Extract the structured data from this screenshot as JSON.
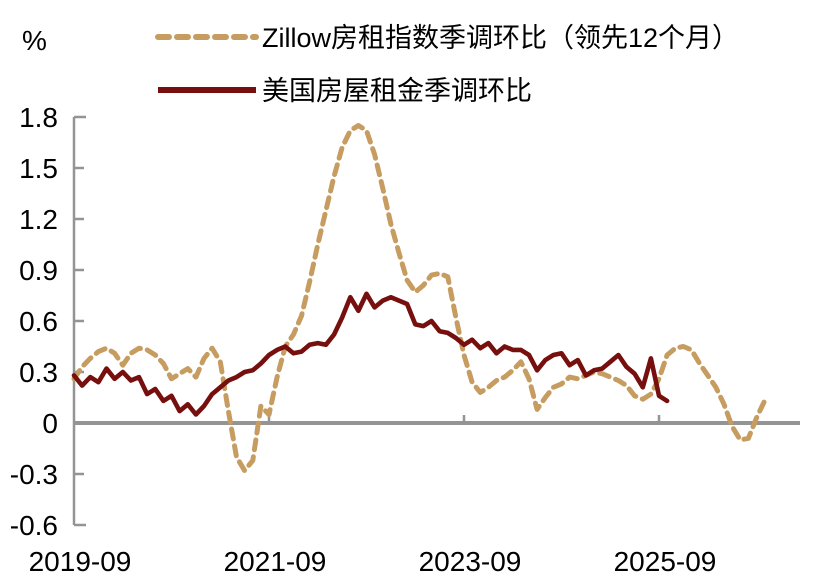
{
  "figure": {
    "y_unit_label": "%",
    "axis_color": "#949494",
    "text_color": "#000000",
    "legend": [
      {
        "label": "Zillow房租指数季调环比（领先12个月）",
        "line_style": "dashed",
        "color": "#C69C60"
      },
      {
        "label": "美国房屋租金季调环比",
        "line_style": "solid",
        "color": "#760F0D"
      }
    ]
  },
  "chart_data": {
    "type": "line",
    "title": "",
    "xlabel": "",
    "ylabel": "%",
    "grid": false,
    "legend_position": "top-left",
    "ylim": [
      -0.6,
      1.8
    ],
    "y_ticks": [
      1.8,
      1.5,
      1.2,
      0.9,
      0.6,
      0.3,
      0,
      -0.3,
      -0.6
    ],
    "y_tick_labels": [
      "1.8",
      "1.5",
      "1.2",
      "0.9",
      "0.6",
      "0.3",
      "0",
      "-0.3",
      "-0.6"
    ],
    "x_frequency": "monthly",
    "x_start": "2019-09",
    "x_tick_months": [
      0,
      24,
      48,
      72
    ],
    "x_tick_labels": [
      "2019-09",
      "2021-09",
      "2023-09",
      "2025-09"
    ],
    "series": [
      {
        "name": "Zillow房租指数季调环比（领先12个月）",
        "color": "#C69C60",
        "dashed": true,
        "start_month": "2019-09",
        "end_month": "2026-10",
        "values": [
          0.26,
          0.33,
          0.38,
          0.42,
          0.44,
          0.41,
          0.34,
          0.41,
          0.44,
          0.43,
          0.4,
          0.35,
          0.26,
          0.29,
          0.32,
          0.27,
          0.38,
          0.44,
          0.36,
          0.07,
          -0.2,
          -0.28,
          -0.22,
          0.1,
          0.05,
          0.27,
          0.45,
          0.52,
          0.63,
          0.83,
          1.05,
          1.25,
          1.45,
          1.62,
          1.72,
          1.75,
          1.72,
          1.58,
          1.38,
          1.17,
          1.0,
          0.84,
          0.77,
          0.81,
          0.87,
          0.88,
          0.86,
          0.62,
          0.4,
          0.24,
          0.18,
          0.21,
          0.25,
          0.27,
          0.31,
          0.36,
          0.26,
          0.08,
          0.15,
          0.21,
          0.23,
          0.27,
          0.26,
          0.28,
          0.3,
          0.29,
          0.27,
          0.25,
          0.22,
          0.16,
          0.14,
          0.17,
          0.26,
          0.4,
          0.44,
          0.45,
          0.43,
          0.35,
          0.28,
          0.21,
          0.11,
          -0.02,
          -0.1,
          -0.09,
          0.03,
          0.13
        ]
      },
      {
        "name": "美国房屋租金季调环比",
        "color": "#760F0D",
        "dashed": false,
        "start_month": "2019-09",
        "end_month": "2025-10",
        "values": [
          0.28,
          0.22,
          0.27,
          0.24,
          0.32,
          0.26,
          0.3,
          0.25,
          0.27,
          0.17,
          0.2,
          0.13,
          0.16,
          0.07,
          0.11,
          0.05,
          0.1,
          0.17,
          0.21,
          0.25,
          0.27,
          0.3,
          0.31,
          0.35,
          0.4,
          0.43,
          0.45,
          0.41,
          0.42,
          0.46,
          0.47,
          0.46,
          0.52,
          0.62,
          0.74,
          0.66,
          0.76,
          0.68,
          0.72,
          0.74,
          0.72,
          0.7,
          0.58,
          0.57,
          0.6,
          0.54,
          0.53,
          0.5,
          0.46,
          0.49,
          0.44,
          0.47,
          0.41,
          0.45,
          0.43,
          0.43,
          0.4,
          0.31,
          0.37,
          0.4,
          0.41,
          0.34,
          0.37,
          0.28,
          0.31,
          0.32,
          0.36,
          0.4,
          0.33,
          0.29,
          0.21,
          0.38,
          0.16,
          0.13
        ]
      }
    ]
  }
}
